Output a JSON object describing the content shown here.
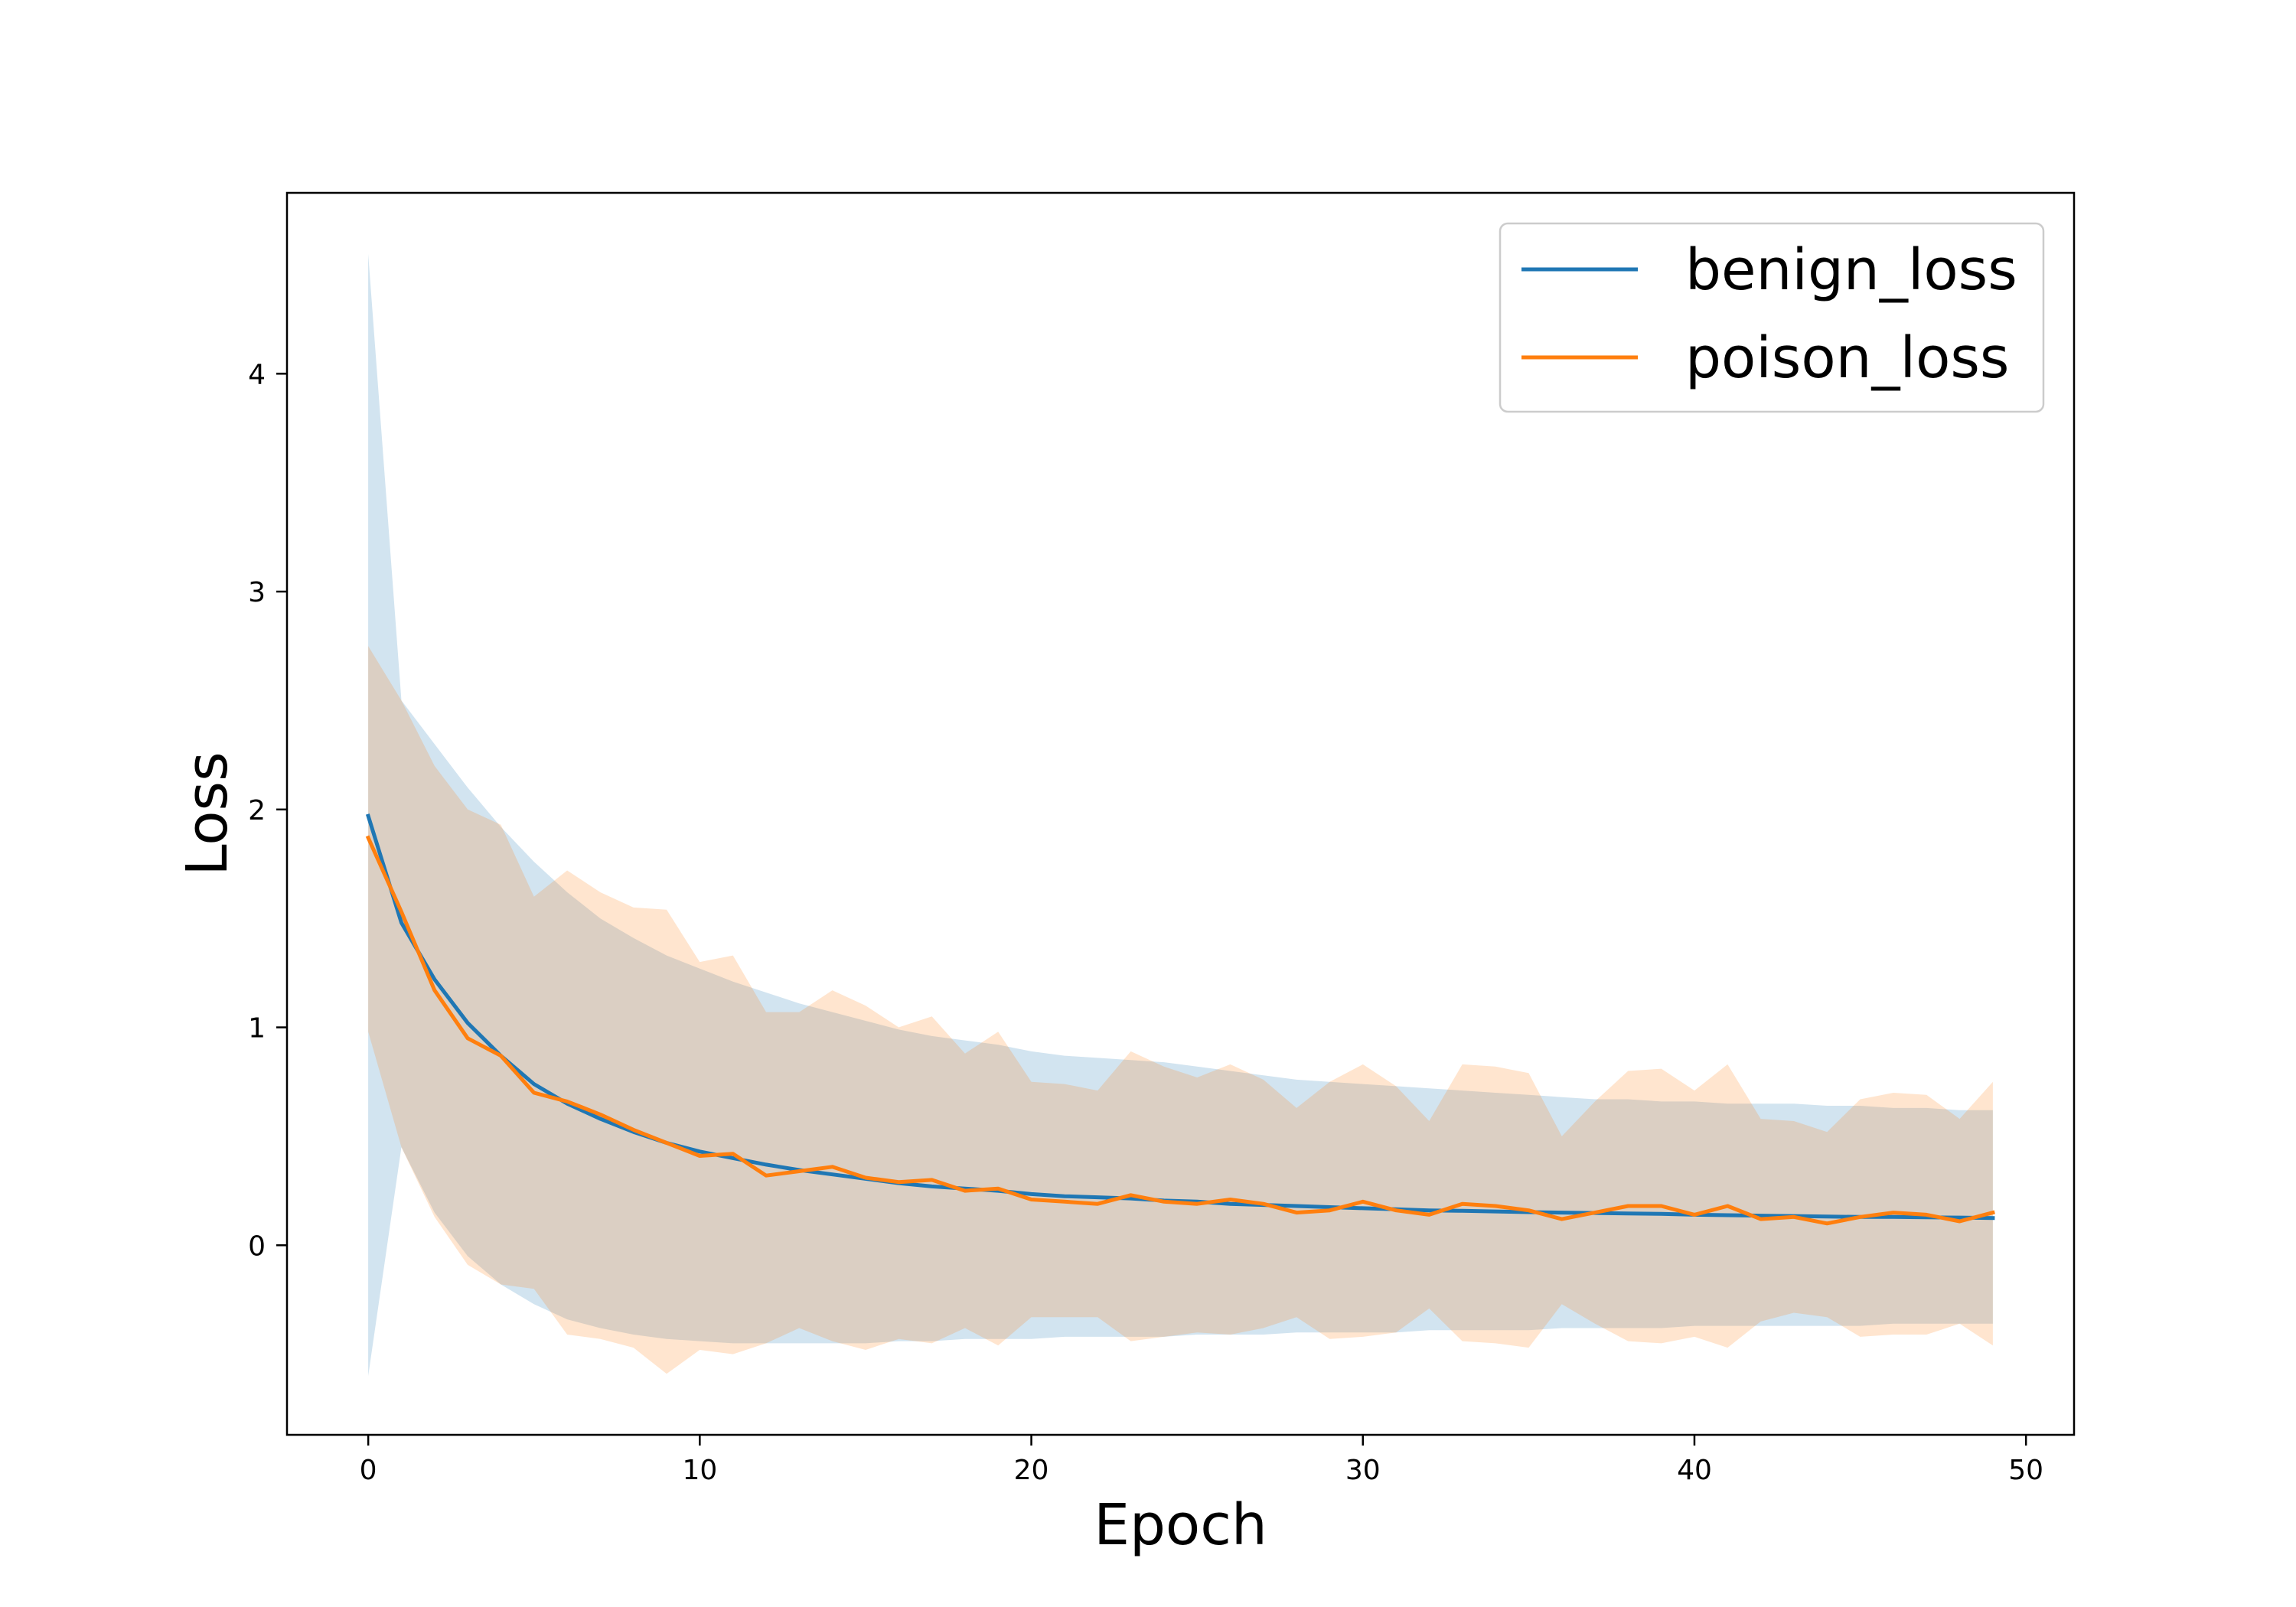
{
  "chart_data": {
    "type": "line",
    "title": "",
    "xlabel": "Epoch",
    "ylabel": "Loss",
    "xlim": [
      -2.45,
      51.45
    ],
    "ylim": [
      -0.87,
      4.83
    ],
    "xticks": [
      0,
      10,
      20,
      30,
      40,
      50
    ],
    "yticks": [
      0,
      1,
      2,
      3,
      4
    ],
    "grid": false,
    "legend_position": "upper right",
    "x": [
      0,
      1,
      2,
      3,
      4,
      5,
      6,
      7,
      8,
      9,
      10,
      11,
      12,
      13,
      14,
      15,
      16,
      17,
      18,
      19,
      20,
      21,
      22,
      23,
      24,
      25,
      26,
      27,
      28,
      29,
      30,
      31,
      32,
      33,
      34,
      35,
      36,
      37,
      38,
      39,
      40,
      41,
      42,
      43,
      44,
      45,
      46,
      47,
      48,
      49
    ],
    "series": [
      {
        "name": "benign_loss",
        "color": "#1f77b4",
        "band_color": "#1f77b4",
        "band_opacity": 0.2,
        "values": [
          1.97,
          1.48,
          1.22,
          1.02,
          0.87,
          0.74,
          0.65,
          0.58,
          0.52,
          0.47,
          0.43,
          0.4,
          0.37,
          0.345,
          0.325,
          0.305,
          0.285,
          0.27,
          0.26,
          0.25,
          0.235,
          0.225,
          0.22,
          0.215,
          0.205,
          0.2,
          0.19,
          0.185,
          0.18,
          0.175,
          0.17,
          0.165,
          0.16,
          0.158,
          0.155,
          0.152,
          0.15,
          0.148,
          0.146,
          0.144,
          0.14,
          0.138,
          0.136,
          0.134,
          0.132,
          0.13,
          0.13,
          0.128,
          0.127,
          0.125
        ],
        "upper": [
          4.55,
          2.5,
          2.3,
          2.1,
          1.92,
          1.76,
          1.62,
          1.5,
          1.41,
          1.33,
          1.27,
          1.21,
          1.16,
          1.11,
          1.07,
          1.03,
          0.99,
          0.96,
          0.94,
          0.92,
          0.89,
          0.87,
          0.86,
          0.85,
          0.84,
          0.82,
          0.8,
          0.78,
          0.76,
          0.75,
          0.74,
          0.73,
          0.72,
          0.71,
          0.7,
          0.69,
          0.68,
          0.67,
          0.67,
          0.66,
          0.66,
          0.65,
          0.65,
          0.65,
          0.64,
          0.64,
          0.63,
          0.63,
          0.62,
          0.62
        ],
        "lower": [
          -0.6,
          0.45,
          0.15,
          -0.05,
          -0.18,
          -0.27,
          -0.34,
          -0.38,
          -0.41,
          -0.43,
          -0.44,
          -0.45,
          -0.45,
          -0.45,
          -0.45,
          -0.45,
          -0.44,
          -0.44,
          -0.43,
          -0.43,
          -0.43,
          -0.42,
          -0.42,
          -0.42,
          -0.42,
          -0.41,
          -0.41,
          -0.41,
          -0.4,
          -0.4,
          -0.4,
          -0.4,
          -0.39,
          -0.39,
          -0.39,
          -0.39,
          -0.38,
          -0.38,
          -0.38,
          -0.38,
          -0.37,
          -0.37,
          -0.37,
          -0.37,
          -0.37,
          -0.37,
          -0.36,
          -0.36,
          -0.36,
          -0.36
        ]
      },
      {
        "name": "poison_loss",
        "color": "#ff7f0e",
        "band_color": "#ff7f0e",
        "band_opacity": 0.2,
        "values": [
          1.87,
          1.53,
          1.17,
          0.95,
          0.87,
          0.7,
          0.66,
          0.6,
          0.53,
          0.47,
          0.41,
          0.42,
          0.32,
          0.34,
          0.36,
          0.31,
          0.29,
          0.3,
          0.25,
          0.26,
          0.21,
          0.2,
          0.19,
          0.23,
          0.2,
          0.19,
          0.21,
          0.19,
          0.15,
          0.16,
          0.2,
          0.16,
          0.14,
          0.19,
          0.18,
          0.16,
          0.12,
          0.15,
          0.18,
          0.18,
          0.14,
          0.18,
          0.12,
          0.13,
          0.1,
          0.13,
          0.15,
          0.14,
          0.11,
          0.15
        ],
        "upper": [
          2.75,
          2.5,
          2.2,
          2.0,
          1.93,
          1.6,
          1.72,
          1.62,
          1.55,
          1.54,
          1.3,
          1.33,
          1.07,
          1.07,
          1.17,
          1.1,
          1.0,
          1.05,
          0.88,
          0.98,
          0.75,
          0.74,
          0.71,
          0.89,
          0.82,
          0.77,
          0.83,
          0.76,
          0.63,
          0.75,
          0.83,
          0.73,
          0.57,
          0.83,
          0.82,
          0.79,
          0.5,
          0.66,
          0.8,
          0.81,
          0.71,
          0.83,
          0.58,
          0.57,
          0.52,
          0.67,
          0.7,
          0.69,
          0.58,
          0.75
        ],
        "lower": [
          0.98,
          0.45,
          0.13,
          -0.09,
          -0.18,
          -0.2,
          -0.41,
          -0.43,
          -0.47,
          -0.59,
          -0.48,
          -0.5,
          -0.45,
          -0.38,
          -0.44,
          -0.48,
          -0.43,
          -0.45,
          -0.38,
          -0.46,
          -0.33,
          -0.33,
          -0.33,
          -0.44,
          -0.42,
          -0.4,
          -0.41,
          -0.38,
          -0.33,
          -0.43,
          -0.42,
          -0.4,
          -0.29,
          -0.44,
          -0.45,
          -0.47,
          -0.27,
          -0.36,
          -0.44,
          -0.45,
          -0.42,
          -0.47,
          -0.35,
          -0.31,
          -0.33,
          -0.42,
          -0.41,
          -0.41,
          -0.36,
          -0.46
        ]
      }
    ]
  }
}
